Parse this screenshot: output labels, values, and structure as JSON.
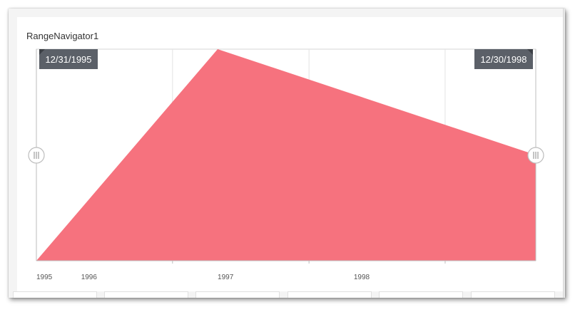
{
  "panel": {
    "title": "RangeNavigator1"
  },
  "chart_data": {
    "type": "area",
    "x": [
      "1995-01-01",
      "1996-05-01",
      "1998-09-01"
    ],
    "y": [
      0,
      100,
      50
    ],
    "xlim": [
      "1995-01-01",
      "1998-09-01"
    ],
    "ylim": [
      0,
      100
    ],
    "x_tick_labels": [
      "1995",
      "1996",
      "1997",
      "1998"
    ],
    "x_tick_dates": [
      "1995-01-01",
      "1996-01-01",
      "1997-01-01",
      "1998-01-01"
    ],
    "selected_range": {
      "start": "12/31/1995",
      "end": "12/30/1998"
    },
    "colors": {
      "fill": "#f6727e",
      "tooltip": "#5b6068",
      "grid": "#e3e3e3",
      "axis": "#bdbdbd"
    },
    "grid": true
  }
}
